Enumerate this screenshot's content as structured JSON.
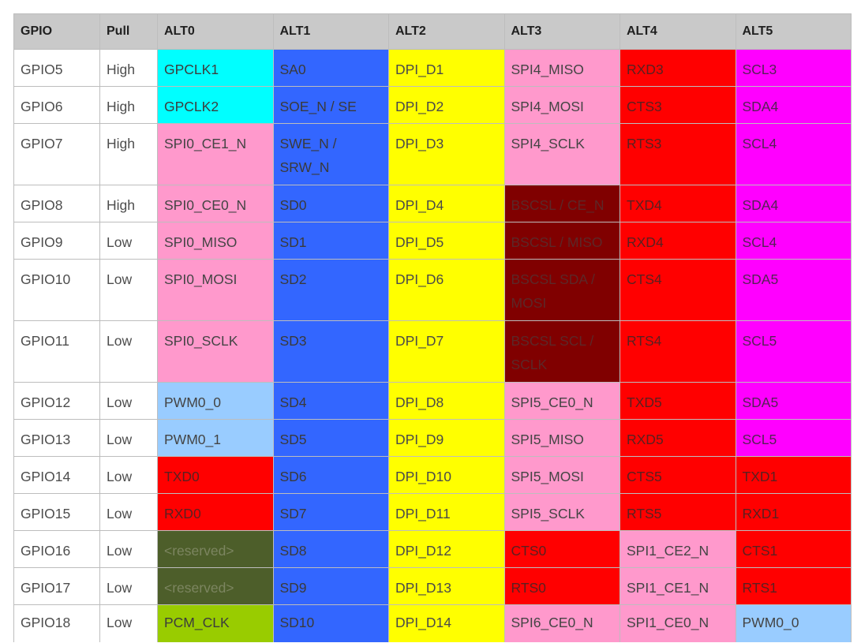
{
  "table": {
    "headers": [
      "GPIO",
      "Pull",
      "ALT0",
      "ALT1",
      "ALT2",
      "ALT3",
      "ALT4",
      "ALT5"
    ],
    "rows": [
      {
        "gpio": "GPIO5",
        "pull": "High",
        "alts": [
          {
            "text": "GPCLK1",
            "color": "cyan"
          },
          {
            "text": "SA0",
            "color": "blue"
          },
          {
            "text": "DPI_D1",
            "color": "yellow"
          },
          {
            "text": "SPI4_MISO",
            "color": "pink"
          },
          {
            "text": "RXD3",
            "color": "red"
          },
          {
            "text": "SCL3",
            "color": "magenta"
          }
        ]
      },
      {
        "gpio": "GPIO6",
        "pull": "High",
        "alts": [
          {
            "text": "GPCLK2",
            "color": "cyan"
          },
          {
            "text": "SOE_N / SE",
            "color": "blue"
          },
          {
            "text": "DPI_D2",
            "color": "yellow"
          },
          {
            "text": "SPI4_MOSI",
            "color": "pink"
          },
          {
            "text": "CTS3",
            "color": "red"
          },
          {
            "text": "SDA4",
            "color": "magenta"
          }
        ]
      },
      {
        "gpio": "GPIO7",
        "pull": "High",
        "tall": true,
        "alts": [
          {
            "text": "SPI0_CE1_N",
            "color": "pink"
          },
          {
            "text": "SWE_N / SRW_N",
            "color": "blue"
          },
          {
            "text": "DPI_D3",
            "color": "yellow"
          },
          {
            "text": "SPI4_SCLK",
            "color": "pink"
          },
          {
            "text": "RTS3",
            "color": "red"
          },
          {
            "text": "SCL4",
            "color": "magenta"
          }
        ]
      },
      {
        "gpio": "GPIO8",
        "pull": "High",
        "alts": [
          {
            "text": "SPI0_CE0_N",
            "color": "pink"
          },
          {
            "text": "SD0",
            "color": "blue"
          },
          {
            "text": "DPI_D4",
            "color": "yellow"
          },
          {
            "text": "BSCSL / CE_N",
            "color": "maroon"
          },
          {
            "text": "TXD4",
            "color": "red"
          },
          {
            "text": "SDA4",
            "color": "magenta"
          }
        ]
      },
      {
        "gpio": "GPIO9",
        "pull": "Low",
        "alts": [
          {
            "text": "SPI0_MISO",
            "color": "pink"
          },
          {
            "text": "SD1",
            "color": "blue"
          },
          {
            "text": "DPI_D5",
            "color": "yellow"
          },
          {
            "text": "BSCSL / MISO",
            "color": "maroon"
          },
          {
            "text": "RXD4",
            "color": "red"
          },
          {
            "text": "SCL4",
            "color": "magenta"
          }
        ]
      },
      {
        "gpio": "GPIO10",
        "pull": "Low",
        "tall": true,
        "alts": [
          {
            "text": "SPI0_MOSI",
            "color": "pink"
          },
          {
            "text": "SD2",
            "color": "blue"
          },
          {
            "text": "DPI_D6",
            "color": "yellow"
          },
          {
            "text": "BSCSL SDA / MOSI",
            "color": "maroon"
          },
          {
            "text": "CTS4",
            "color": "red"
          },
          {
            "text": "SDA5",
            "color": "magenta"
          }
        ]
      },
      {
        "gpio": "GPIO11",
        "pull": "Low",
        "tall": true,
        "alts": [
          {
            "text": "SPI0_SCLK",
            "color": "pink"
          },
          {
            "text": "SD3",
            "color": "blue"
          },
          {
            "text": "DPI_D7",
            "color": "yellow"
          },
          {
            "text": "BSCSL SCL / SCLK",
            "color": "maroon"
          },
          {
            "text": "RTS4",
            "color": "red"
          },
          {
            "text": "SCL5",
            "color": "magenta"
          }
        ]
      },
      {
        "gpio": "GPIO12",
        "pull": "Low",
        "alts": [
          {
            "text": "PWM0_0",
            "color": "lightblue"
          },
          {
            "text": "SD4",
            "color": "blue"
          },
          {
            "text": "DPI_D8",
            "color": "yellow"
          },
          {
            "text": "SPI5_CE0_N",
            "color": "pink"
          },
          {
            "text": "TXD5",
            "color": "red"
          },
          {
            "text": "SDA5",
            "color": "magenta"
          }
        ]
      },
      {
        "gpio": "GPIO13",
        "pull": "Low",
        "alts": [
          {
            "text": "PWM0_1",
            "color": "lightblue"
          },
          {
            "text": "SD5",
            "color": "blue"
          },
          {
            "text": "DPI_D9",
            "color": "yellow"
          },
          {
            "text": "SPI5_MISO",
            "color": "pink"
          },
          {
            "text": "RXD5",
            "color": "red"
          },
          {
            "text": "SCL5",
            "color": "magenta"
          }
        ]
      },
      {
        "gpio": "GPIO14",
        "pull": "Low",
        "alts": [
          {
            "text": "TXD0",
            "color": "red"
          },
          {
            "text": "SD6",
            "color": "blue"
          },
          {
            "text": "DPI_D10",
            "color": "yellow"
          },
          {
            "text": "SPI5_MOSI",
            "color": "pink"
          },
          {
            "text": "CTS5",
            "color": "red"
          },
          {
            "text": "TXD1",
            "color": "red"
          }
        ]
      },
      {
        "gpio": "GPIO15",
        "pull": "Low",
        "alts": [
          {
            "text": "RXD0",
            "color": "red"
          },
          {
            "text": "SD7",
            "color": "blue"
          },
          {
            "text": "DPI_D11",
            "color": "yellow"
          },
          {
            "text": "SPI5_SCLK",
            "color": "pink"
          },
          {
            "text": "RTS5",
            "color": "red"
          },
          {
            "text": "RXD1",
            "color": "red"
          }
        ]
      },
      {
        "gpio": "GPIO16",
        "pull": "Low",
        "alts": [
          {
            "text": "<reserved>",
            "color": "olive"
          },
          {
            "text": "SD8",
            "color": "blue"
          },
          {
            "text": "DPI_D12",
            "color": "yellow"
          },
          {
            "text": "CTS0",
            "color": "red"
          },
          {
            "text": "SPI1_CE2_N",
            "color": "pink"
          },
          {
            "text": "CTS1",
            "color": "red"
          }
        ]
      },
      {
        "gpio": "GPIO17",
        "pull": "Low",
        "alts": [
          {
            "text": "<reserved>",
            "color": "olive"
          },
          {
            "text": "SD9",
            "color": "blue"
          },
          {
            "text": "DPI_D13",
            "color": "yellow"
          },
          {
            "text": "RTS0",
            "color": "red"
          },
          {
            "text": "SPI1_CE1_N",
            "color": "pink"
          },
          {
            "text": "RTS1",
            "color": "red"
          }
        ]
      },
      {
        "gpio": "GPIO18",
        "pull": "Low",
        "last": true,
        "alts": [
          {
            "text": "PCM_CLK",
            "color": "lime"
          },
          {
            "text": "SD10",
            "color": "blue"
          },
          {
            "text": "DPI_D14",
            "color": "yellow"
          },
          {
            "text": "SPI6_CE0_N",
            "color": "pink"
          },
          {
            "text": "SPI1_CE0_N",
            "color": "pink"
          },
          {
            "text": "PWM0_0",
            "color": "lightblue"
          }
        ]
      }
    ]
  },
  "colors": {
    "cyan": "#00ffff",
    "blue": "#3366ff",
    "yellow": "#ffff00",
    "pink": "#ff99cc",
    "red": "#ff0000",
    "magenta": "#ff00ff",
    "maroon": "#800000",
    "lightblue": "#99ccff",
    "olive": "#4d5e2a",
    "lime": "#99cc00",
    "header": "#c9c9c9"
  }
}
